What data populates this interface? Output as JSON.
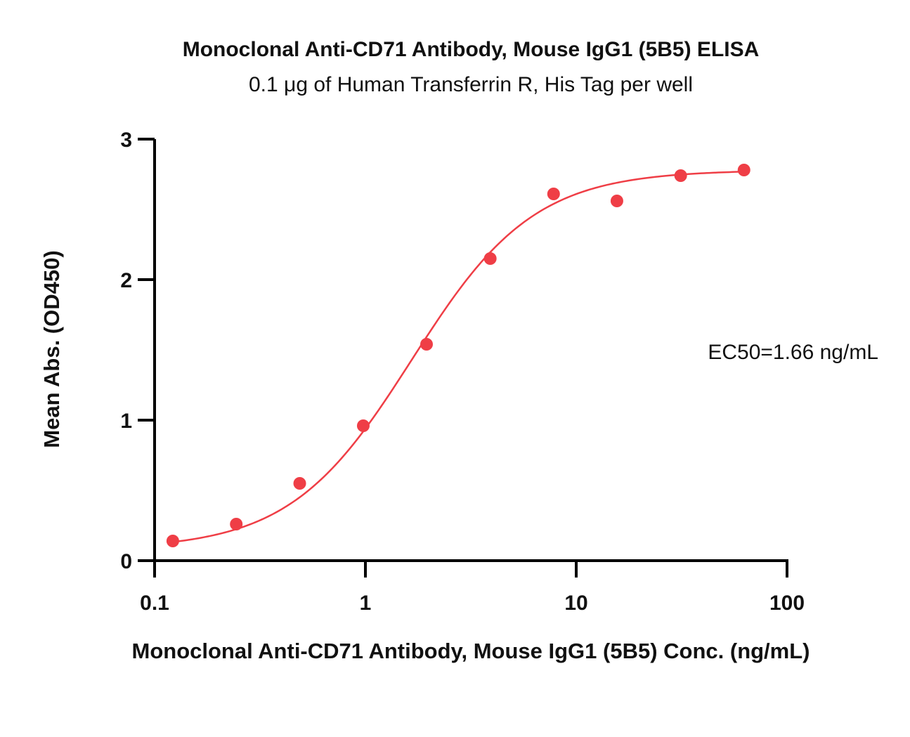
{
  "chart_data": {
    "type": "scatter",
    "title": "Monoclonal Anti-CD71 Antibody, Mouse IgG1 (5B5) ELISA",
    "subtitle": "0.1 μg of Human Transferrin R, His Tag per well",
    "xlabel": "Monoclonal Anti-CD71 Antibody, Mouse IgG1 (5B5) Conc. (ng/mL)",
    "ylabel": "Mean Abs. (OD450)",
    "xscale": "log",
    "xlim": [
      0.1,
      100
    ],
    "ylim": [
      0,
      3
    ],
    "x_ticks": [
      0.1,
      1,
      10,
      100
    ],
    "x_tick_labels": [
      "0.1",
      "1",
      "10",
      "100"
    ],
    "y_ticks": [
      0,
      1,
      2,
      3
    ],
    "y_tick_labels": [
      "0",
      "1",
      "2",
      "3"
    ],
    "grid": false,
    "annotation": "EC50=1.66 ng/mL",
    "series": [
      {
        "x": [
          0.122,
          0.244,
          0.488,
          0.977,
          1.95,
          3.91,
          7.81,
          15.6,
          31.3,
          62.5
        ],
        "y": [
          0.14,
          0.26,
          0.55,
          0.96,
          1.54,
          2.15,
          2.61,
          2.56,
          2.74,
          2.78
        ],
        "fit": {
          "model": "4PL",
          "bottom": 0.08,
          "top": 2.78,
          "ec50": 1.66,
          "hill": 1.5
        }
      }
    ],
    "color": "#ef3e46"
  }
}
